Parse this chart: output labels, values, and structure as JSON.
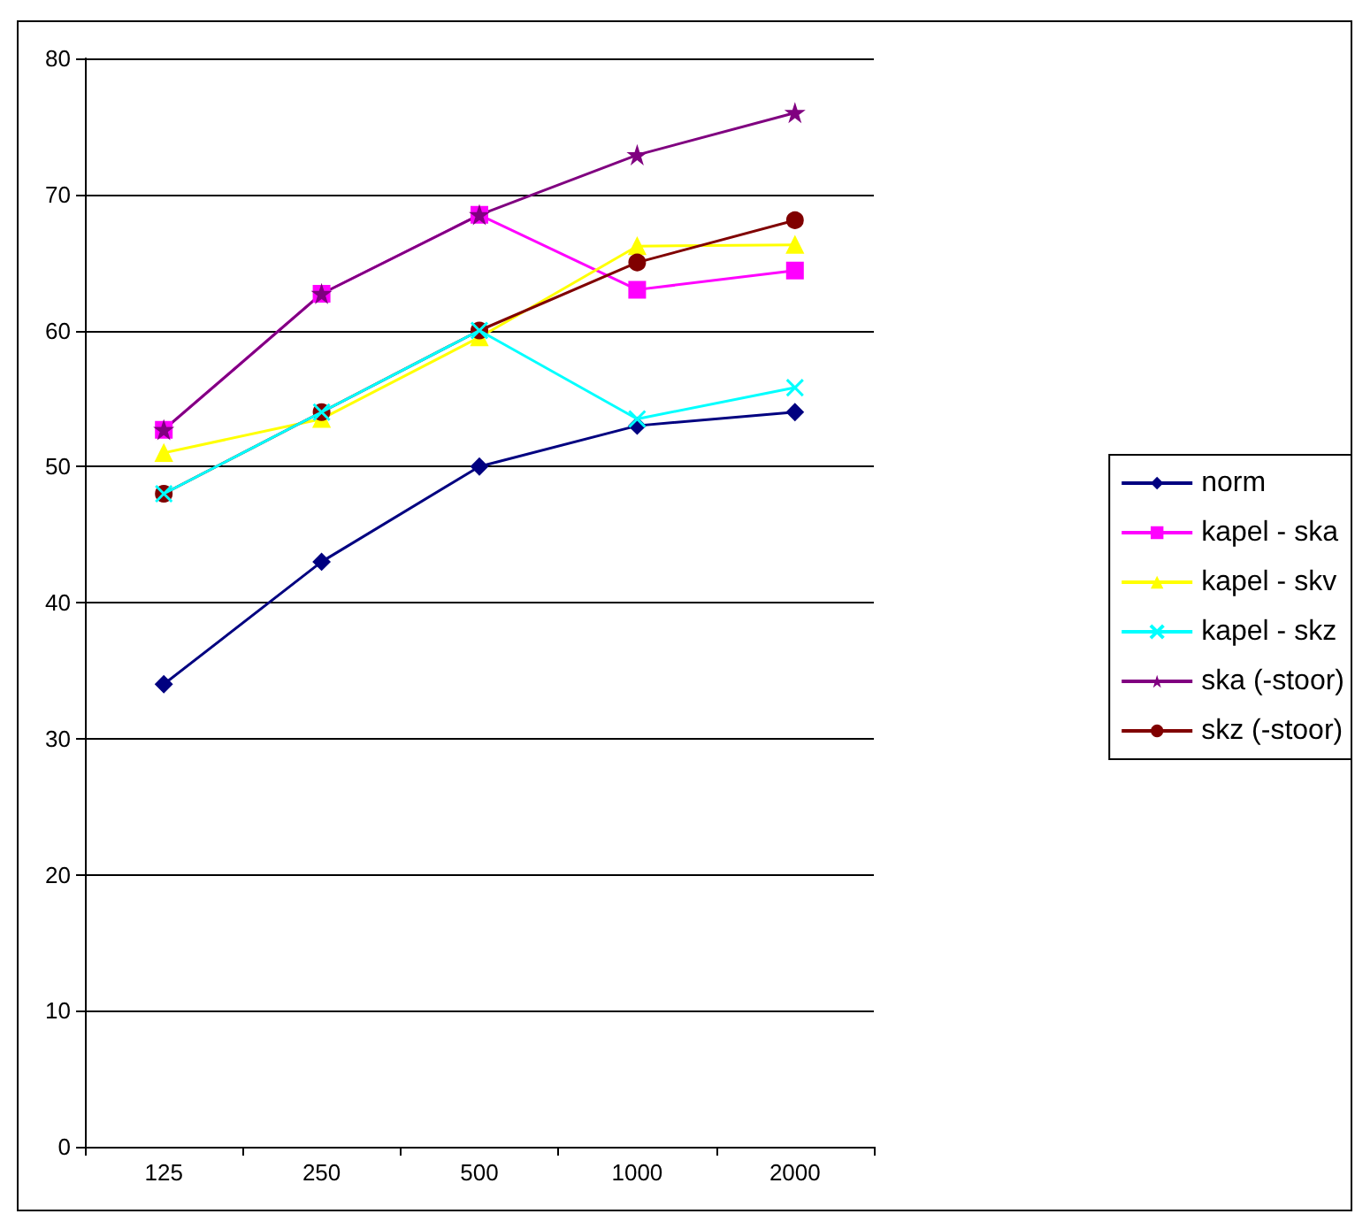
{
  "chart_data": {
    "type": "line",
    "categories": [
      "125",
      "250",
      "500",
      "1000",
      "2000"
    ],
    "series": [
      {
        "name": "norm",
        "color": "#000080",
        "marker": "diamond",
        "values": [
          34,
          43,
          50,
          53,
          54
        ]
      },
      {
        "name": "kapel - ska",
        "color": "#ff00ff",
        "marker": "square",
        "values": [
          52.7,
          62.7,
          68.5,
          63,
          64.4
        ]
      },
      {
        "name": "kapel - skv",
        "color": "#ffff00",
        "marker": "triangle",
        "values": [
          51,
          53.5,
          59.5,
          66.2,
          66.3
        ]
      },
      {
        "name": "kapel - skz",
        "color": "#00ffff",
        "marker": "cross",
        "values": [
          48,
          54,
          60,
          53.5,
          55.8
        ]
      },
      {
        "name": "ska (-stoor)",
        "color": "#800080",
        "marker": "star",
        "values": [
          52.7,
          62.7,
          68.5,
          72.9,
          76
        ]
      },
      {
        "name": "skz (-stoor)",
        "color": "#800000",
        "marker": "circle",
        "values": [
          48,
          54,
          60,
          65,
          68.1
        ]
      }
    ],
    "ylim": [
      0,
      80
    ],
    "yticks": [
      0,
      10,
      20,
      30,
      40,
      50,
      60,
      70,
      80
    ],
    "grid": "y",
    "legend": "right",
    "line_style": "solid"
  }
}
